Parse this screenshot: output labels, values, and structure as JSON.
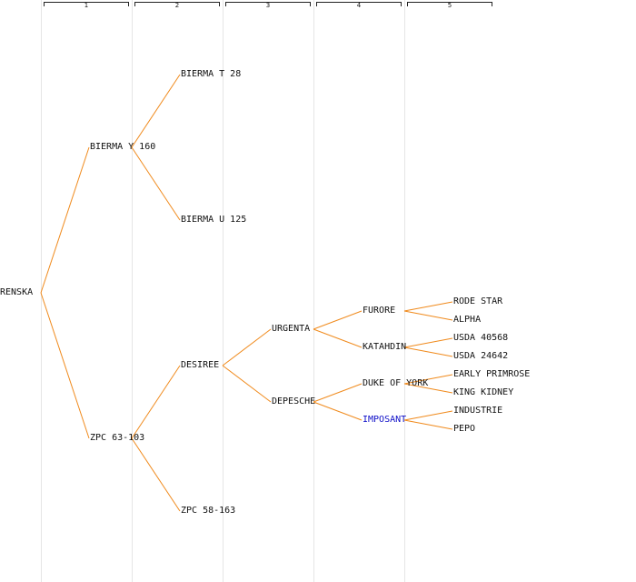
{
  "generations": [
    "1",
    "2",
    "3",
    "4",
    "5"
  ],
  "colors": {
    "link": "#f08a1c",
    "text": "#111111",
    "highlight": "#1010c8",
    "column_line": "#e6e6e6"
  },
  "nodes": {
    "root": "RENSKA",
    "g1_a": "BIERMA Y 160",
    "g1_b": "ZPC 63-103",
    "g2_a": "BIERMA T 28",
    "g2_b": "BIERMA U 125",
    "g2_c": "DESIREE",
    "g2_d": "ZPC 58-163",
    "g3_a": "URGENTA",
    "g3_b": "DEPESCHE",
    "g4_a": "FURORE",
    "g4_b": "KATAHDIN",
    "g4_c": "DUKE OF YORK",
    "g4_d": "IMPOSANT",
    "g5_a": "RODE STAR",
    "g5_b": "ALPHA",
    "g5_c": "USDA 40568",
    "g5_d": "USDA 24642",
    "g5_e": "EARLY PRIMROSE",
    "g5_f": "KING KIDNEY",
    "g5_g": "INDUSTRIE",
    "g5_h": "PEPO"
  }
}
